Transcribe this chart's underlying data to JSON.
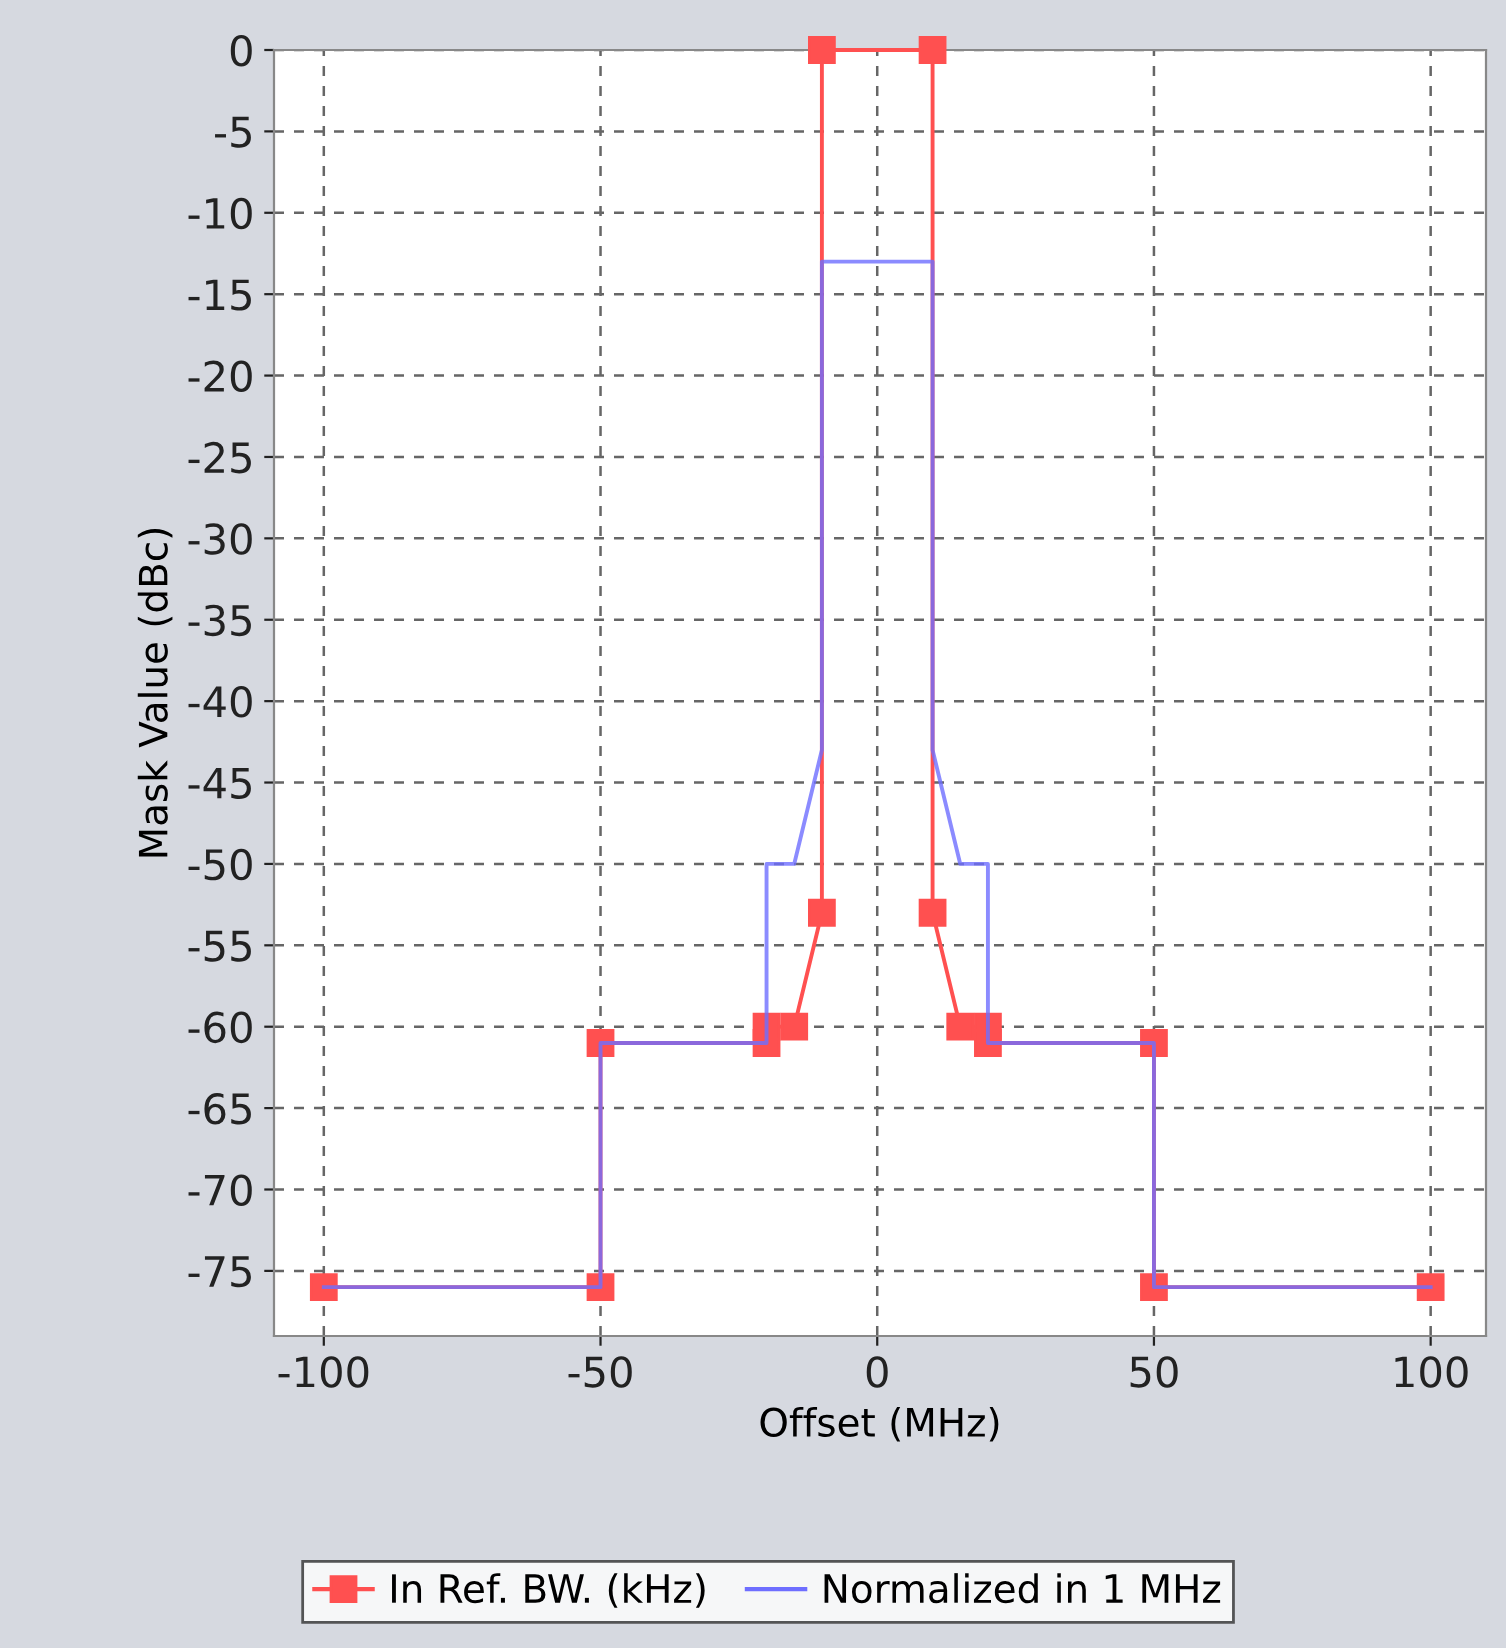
{
  "chart_data": {
    "type": "line",
    "xlabel": "Offset (MHz)",
    "ylabel": "Mask Value (dBc)",
    "xlim": [
      -109,
      110
    ],
    "ylim": [
      -79,
      0
    ],
    "xticks": [
      -100,
      -50,
      0,
      50,
      100
    ],
    "yticks": [
      0,
      -5,
      -10,
      -15,
      -20,
      -25,
      -30,
      -35,
      -40,
      -45,
      -50,
      -55,
      -60,
      -65,
      -70,
      -75
    ],
    "grid": true,
    "legend": "bottom",
    "series": [
      {
        "name": "In Ref. BW. (kHz)",
        "color": "#ff5050",
        "marker": "square",
        "x": [
          -100,
          -50,
          -50,
          -20,
          -20,
          -15,
          -10,
          -10,
          10,
          10,
          15,
          20,
          20,
          50,
          50,
          100
        ],
        "values": [
          -76,
          -76,
          -61,
          -61,
          -60,
          -60,
          -53,
          0,
          0,
          -53,
          -60,
          -60,
          -61,
          -61,
          -76,
          -76
        ]
      },
      {
        "name": "Normalized in 1 MHz",
        "color": "#6e6eff",
        "marker": "none",
        "x": [
          -100,
          -50,
          -50,
          -20,
          -20,
          -15,
          -10,
          -10,
          10,
          10,
          15,
          20,
          20,
          50,
          50,
          100
        ],
        "values": [
          -76,
          -76,
          -61,
          -61,
          -50,
          -50,
          -43,
          -13,
          -13,
          -43,
          -50,
          -50,
          -61,
          -61,
          -76,
          -76
        ]
      }
    ]
  }
}
